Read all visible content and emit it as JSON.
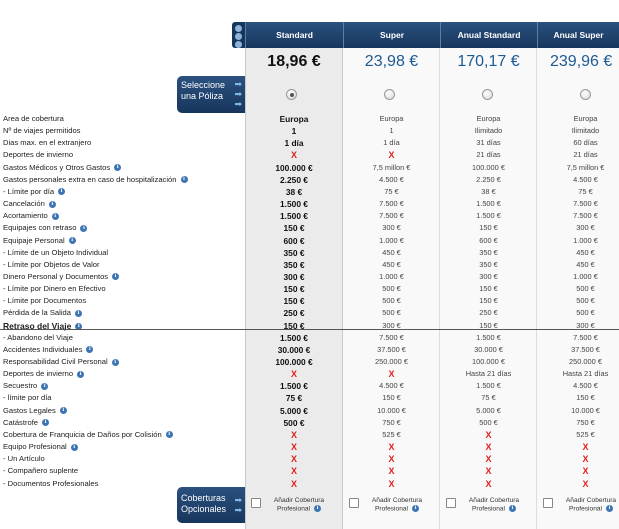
{
  "plans": [
    {
      "name": "Standard",
      "price": "18,96 €",
      "selected": true
    },
    {
      "name": "Super",
      "price": "23,98 €",
      "selected": false
    },
    {
      "name": "Anual Standard",
      "price": "170,17 €",
      "selected": false
    },
    {
      "name": "Anual Super",
      "price": "239,96 €",
      "selected": false
    }
  ],
  "select_button": {
    "line1": "Seleccione",
    "line2": "una Póliza"
  },
  "optional_button": {
    "line1": "Coberturas",
    "line2": "Opcionales"
  },
  "optional_cell": {
    "line1": "Añadir Cobertura",
    "line2": "Profesional"
  },
  "rows": [
    {
      "label": "Area de cobertura",
      "info": false,
      "bold": false,
      "v": [
        "Europa",
        "Europa",
        "Europa",
        "Europa"
      ]
    },
    {
      "label": "Nº de viajes permitidos",
      "info": false,
      "bold": false,
      "v": [
        "1",
        "1",
        "Ilimitado",
        "Ilimitado"
      ]
    },
    {
      "label": "Dias max. en el extranjero",
      "info": false,
      "bold": false,
      "v": [
        "1 día",
        "1 día",
        "31 días",
        "60 días"
      ]
    },
    {
      "label": "Deportes de invierno",
      "info": false,
      "bold": false,
      "v": [
        "X",
        "X",
        "21 días",
        "21 días"
      ]
    },
    {
      "label": "Gastos Médicos y Otros Gastos",
      "info": true,
      "bold": false,
      "v": [
        "100.000 €",
        "7,5 millon €",
        "100.000 €",
        "7,5 millon €"
      ]
    },
    {
      "label": "Gastos personales extra en caso de hospitalización",
      "info": true,
      "bold": false,
      "v": [
        "2.250 €",
        "4.500 €",
        "2.250 €",
        "4.500 €"
      ]
    },
    {
      "label": "- Límite por día",
      "info": true,
      "bold": false,
      "v": [
        "38 €",
        "75 €",
        "38 €",
        "75 €"
      ]
    },
    {
      "label": "Cancelación",
      "info": true,
      "bold": false,
      "v": [
        "1.500 €",
        "7.500 €",
        "1.500 €",
        "7.500 €"
      ]
    },
    {
      "label": "Acortamiento",
      "info": true,
      "bold": false,
      "v": [
        "1.500 €",
        "7.500 €",
        "1.500 €",
        "7.500 €"
      ]
    },
    {
      "label": "Equipajes con retraso",
      "info": true,
      "bold": false,
      "v": [
        "150 €",
        "300 €",
        "150 €",
        "300 €"
      ]
    },
    {
      "label": "Equipaje Personal",
      "info": true,
      "bold": false,
      "v": [
        "600 €",
        "1.000 €",
        "600 €",
        "1.000 €"
      ]
    },
    {
      "label": "- Límite de un Objeto Individual",
      "info": false,
      "bold": false,
      "v": [
        "350 €",
        "450 €",
        "350 €",
        "450 €"
      ]
    },
    {
      "label": "- Límite por Objetos de Valor",
      "info": false,
      "bold": false,
      "v": [
        "350 €",
        "450 €",
        "350 €",
        "450 €"
      ]
    },
    {
      "label": "Dinero Personal y Documentos",
      "info": true,
      "bold": false,
      "v": [
        "300 €",
        "1.000 €",
        "300 €",
        "1.000 €"
      ]
    },
    {
      "label": "- Límite por Dinero en Efectivo",
      "info": false,
      "bold": false,
      "v": [
        "150 €",
        "500 €",
        "150 €",
        "500 €"
      ]
    },
    {
      "label": "- Límite por Documentos",
      "info": false,
      "bold": false,
      "v": [
        "150 €",
        "500 €",
        "150 €",
        "500 €"
      ]
    },
    {
      "label": "Pérdida de la Salida",
      "info": true,
      "bold": false,
      "v": [
        "250 €",
        "500 €",
        "250 €",
        "500 €"
      ]
    },
    {
      "label": "Retraso del Viaje",
      "info": true,
      "bold": true,
      "v": [
        "150 €",
        "300 €",
        "150 €",
        "300 €"
      ]
    },
    {
      "label": "- Abandono del Viaje",
      "info": false,
      "bold": false,
      "v": [
        "1.500 €",
        "7.500 €",
        "1.500 €",
        "7.500 €"
      ]
    },
    {
      "label": "Accidentes Individuales",
      "info": true,
      "bold": false,
      "v": [
        "30.000 €",
        "37.500 €",
        "30.000 €",
        "37.500 €"
      ]
    },
    {
      "label": "Responsabilidad Civil Personal",
      "info": true,
      "bold": false,
      "v": [
        "100.000 €",
        "250.000 €",
        "100.000 €",
        "250.000 €"
      ]
    },
    {
      "label": "Deportes de invierno",
      "info": true,
      "bold": false,
      "v": [
        "X",
        "X",
        "Hasta 21 días",
        "Hasta 21 días"
      ]
    },
    {
      "label": "Secuestro",
      "info": true,
      "bold": false,
      "v": [
        "1.500 €",
        "4.500 €",
        "1.500 €",
        "4.500 €"
      ]
    },
    {
      "label": "- límite por día",
      "info": false,
      "bold": false,
      "v": [
        "75 €",
        "150 €",
        "75 €",
        "150 €"
      ]
    },
    {
      "label": "Gastos Legales",
      "info": true,
      "bold": false,
      "v": [
        "5.000 €",
        "10.000 €",
        "5.000 €",
        "10.000 €"
      ]
    },
    {
      "label": "Catástrofe",
      "info": true,
      "bold": false,
      "v": [
        "500 €",
        "750 €",
        "500 €",
        "750 €"
      ]
    },
    {
      "label": "Cobertura de Franquicia de Daños por Colisión",
      "info": true,
      "bold": false,
      "v": [
        "X",
        "525 €",
        "X",
        "525 €"
      ]
    },
    {
      "label": "Equipo Profesional",
      "info": true,
      "bold": false,
      "v": [
        "X",
        "X",
        "X",
        "X"
      ]
    },
    {
      "label": "- Un Artículo",
      "info": false,
      "bold": false,
      "v": [
        "X",
        "X",
        "X",
        "X"
      ]
    },
    {
      "label": "- Compañero suplente",
      "info": false,
      "bold": false,
      "v": [
        "X",
        "X",
        "X",
        "X"
      ]
    },
    {
      "label": "- Documentos Profesionales",
      "info": false,
      "bold": false,
      "v": [
        "X",
        "X",
        "X",
        "X"
      ]
    }
  ]
}
